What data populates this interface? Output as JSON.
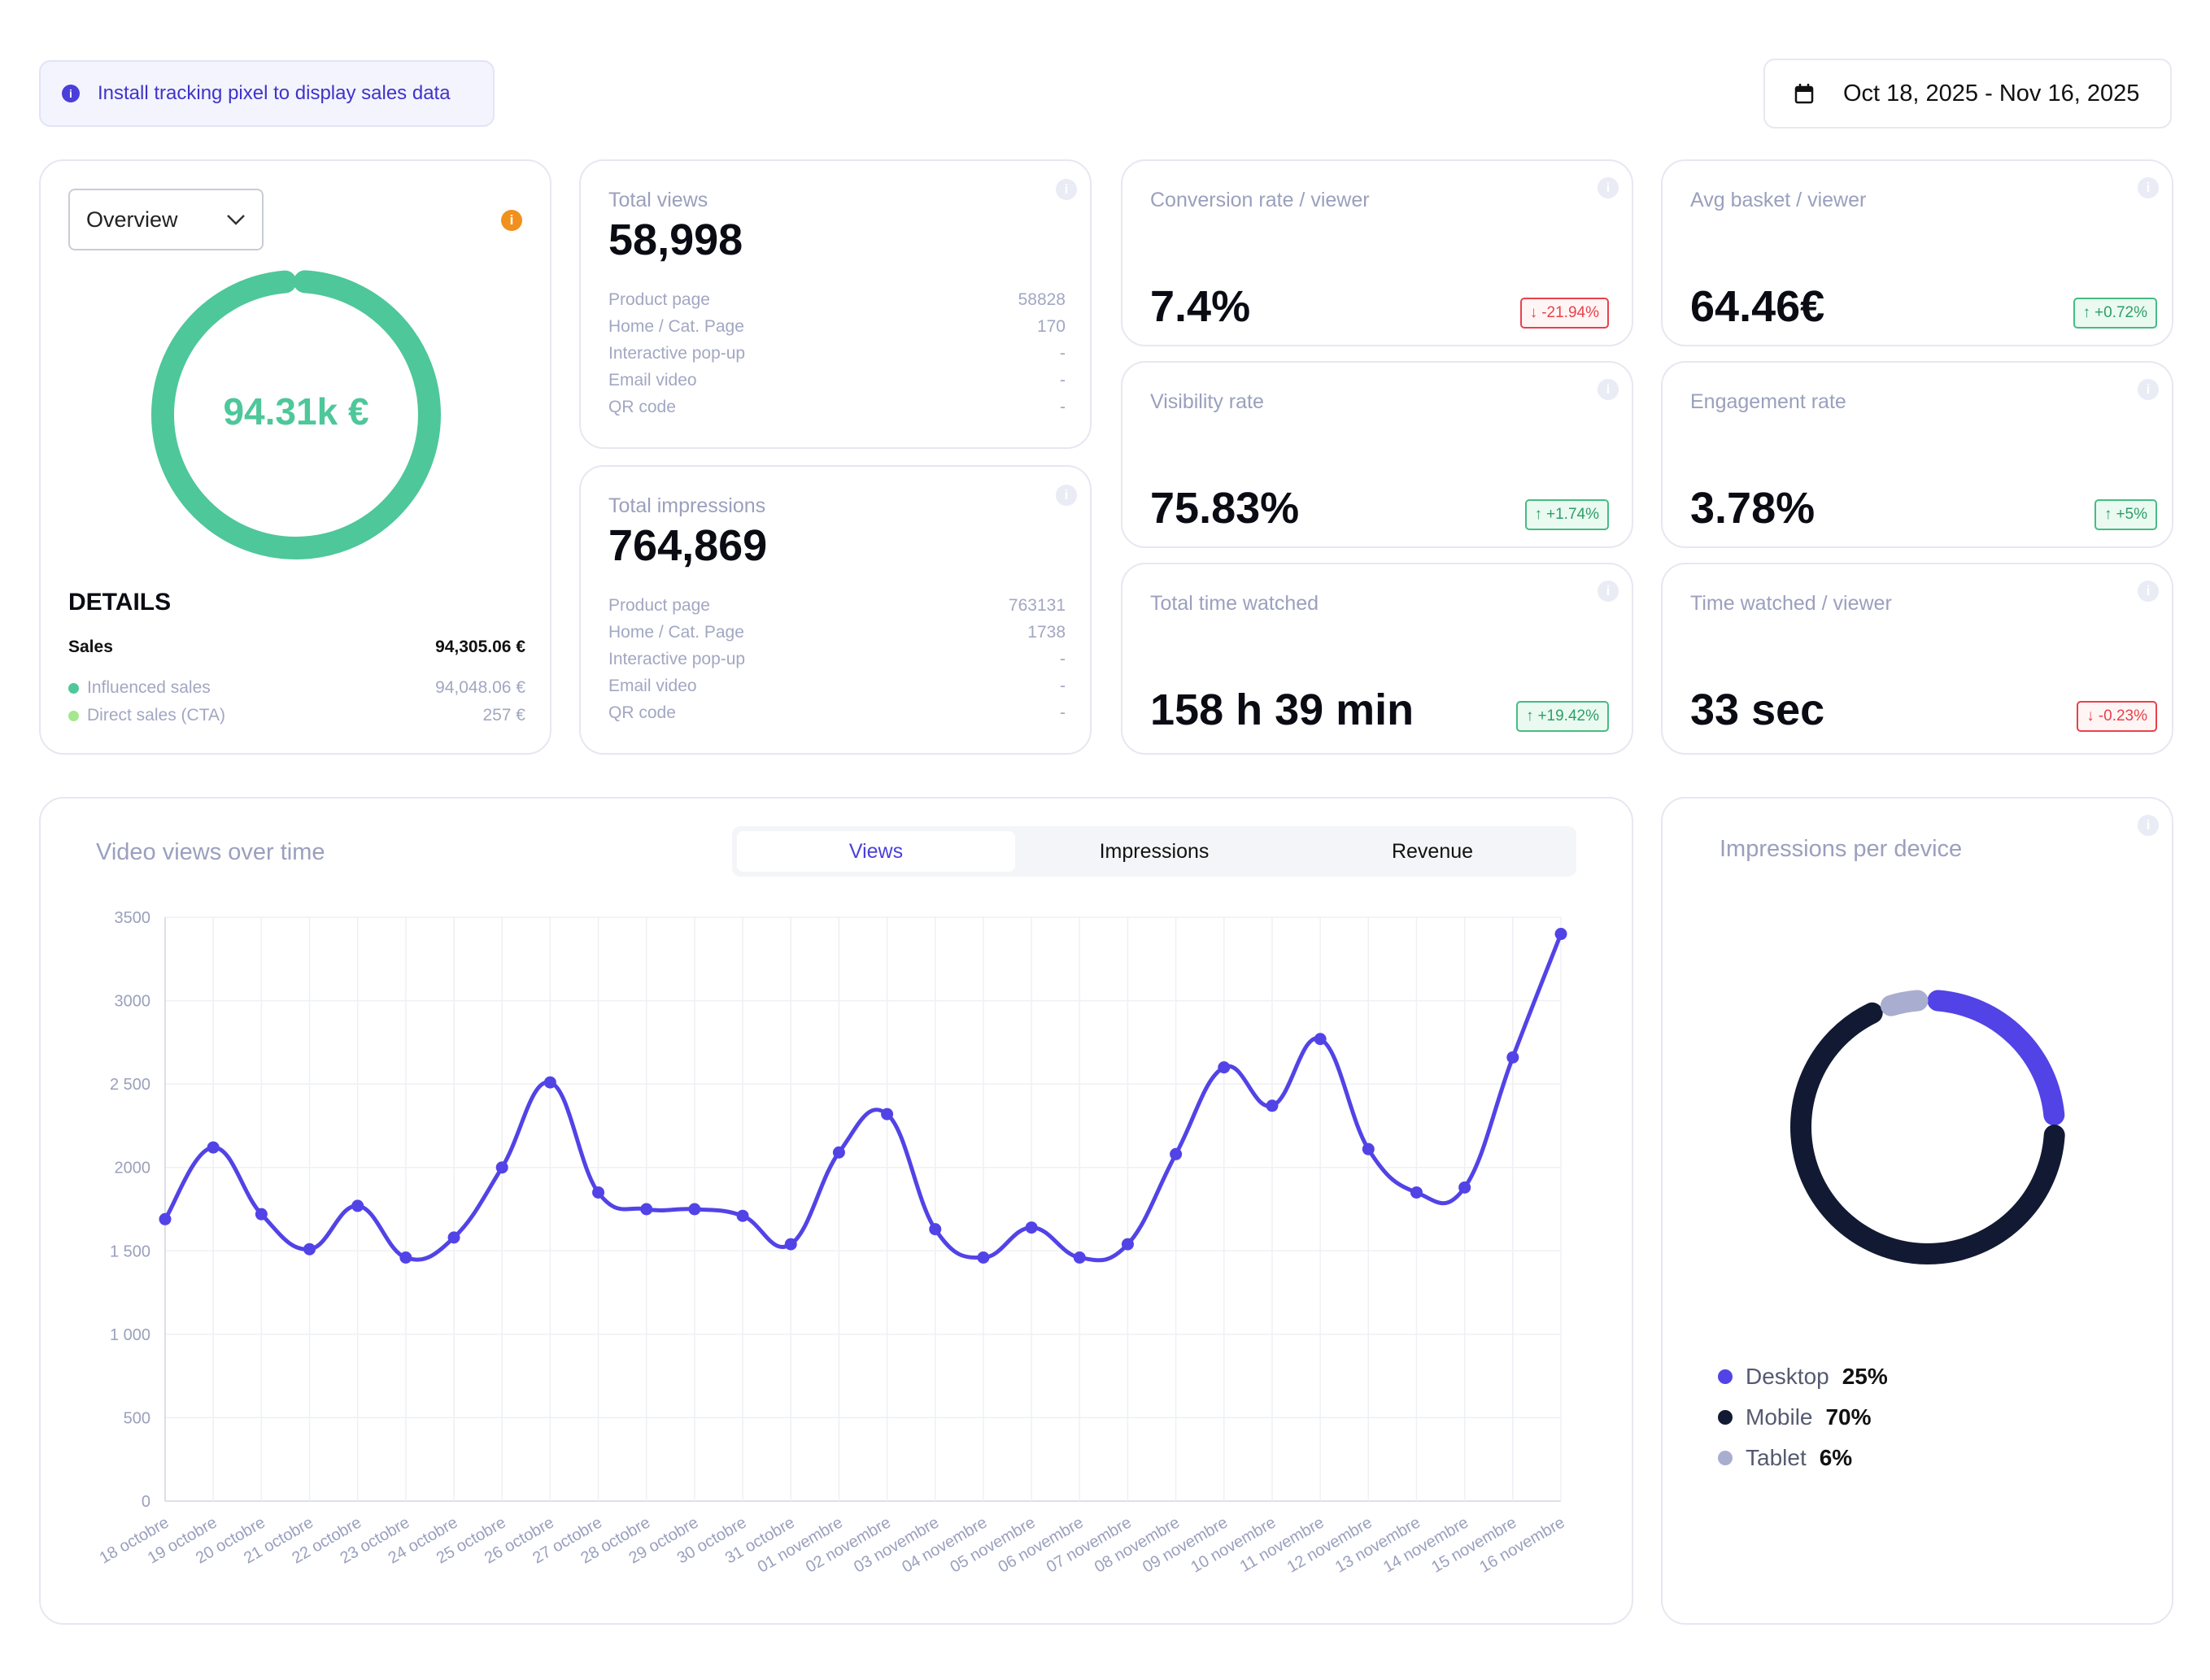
{
  "banner": {
    "text": "Install tracking pixel to display sales data"
  },
  "date_range": {
    "text": "Oct 18, 2025 - Nov 16, 2025"
  },
  "overview": {
    "dropdown": "Overview",
    "total": "94.31k €",
    "details_title": "DETAILS",
    "sales_label": "Sales",
    "sales_value": "94,305.06 €",
    "influenced_label": "Influenced sales",
    "influenced_value": "94,048.06 €",
    "direct_label": "Direct sales (CTA)",
    "direct_value": "257 €",
    "ring_share": 0.997,
    "colors": {
      "influenced": "#4ec79a",
      "direct": "#a3e88f"
    }
  },
  "views": {
    "title": "Total views",
    "value": "58,998",
    "rows": [
      {
        "label": "Product page",
        "value": "58828"
      },
      {
        "label": "Home / Cat. Page",
        "value": "170"
      },
      {
        "label": "Interactive pop-up",
        "value": "-"
      },
      {
        "label": "Email video",
        "value": "-"
      },
      {
        "label": "QR code",
        "value": "-"
      }
    ]
  },
  "impressions": {
    "title": "Total impressions",
    "value": "764,869",
    "rows": [
      {
        "label": "Product page",
        "value": "763131"
      },
      {
        "label": "Home / Cat. Page",
        "value": "1738"
      },
      {
        "label": "Interactive pop-up",
        "value": "-"
      },
      {
        "label": "Email video",
        "value": "-"
      },
      {
        "label": "QR code",
        "value": "-"
      }
    ]
  },
  "kpis": {
    "conversion": {
      "title": "Conversion rate / viewer",
      "value": "7.4%",
      "change": "-21.94%",
      "dir": "down"
    },
    "basket": {
      "title": "Avg basket / viewer",
      "value": "64.46€",
      "change": "+0.72%",
      "dir": "up"
    },
    "visibility": {
      "title": "Visibility rate",
      "value": "75.83%",
      "change": "+1.74%",
      "dir": "up"
    },
    "engagement": {
      "title": "Engagement rate",
      "value": "3.78%",
      "change": "+5%",
      "dir": "up"
    },
    "time_total": {
      "title": "Total time watched",
      "value": "158 h 39 min",
      "change": "+19.42%",
      "dir": "up"
    },
    "time_viewer": {
      "title": "Time watched / viewer",
      "value": "33 sec",
      "change": "-0.23%",
      "dir": "down"
    }
  },
  "timechart": {
    "title": "Video views over time",
    "tabs": [
      "Views",
      "Impressions",
      "Revenue"
    ],
    "active_tab": "Views"
  },
  "device": {
    "title": "Impressions per device",
    "legend": [
      {
        "label": "Desktop",
        "pct": "25%",
        "color": "#5243e6"
      },
      {
        "label": "Mobile",
        "pct": "70%",
        "color": "#121a33"
      },
      {
        "label": "Tablet",
        "pct": "6%",
        "color": "#a9aed0"
      }
    ]
  },
  "chart_data": {
    "type": "line",
    "title": "Video views over time",
    "xlabel": "",
    "ylabel": "",
    "ylim": [
      0,
      3500
    ],
    "yticks": [
      0,
      500,
      1000,
      1500,
      2000,
      2500,
      3000,
      3500
    ],
    "ytick_labels": [
      "0",
      "500",
      "1 000",
      "1 500",
      "2000",
      "2 500",
      "3000",
      "3500"
    ],
    "grid": true,
    "categories": [
      "18 octobre",
      "19 octobre",
      "20 octobre",
      "21 octobre",
      "22 octobre",
      "23 octobre",
      "24 octobre",
      "25 octobre",
      "26 octobre",
      "27 octobre",
      "28 octobre",
      "29 octobre",
      "30 octobre",
      "31 octobre",
      "01 novembre",
      "02 novembre",
      "03 novembre",
      "04 novembre",
      "05 novembre",
      "06 novembre",
      "07 novembre",
      "08 novembre",
      "09 novembre",
      "10 novembre",
      "11 novembre",
      "12 novembre",
      "13 novembre",
      "14 novembre",
      "15 novembre",
      "16 novembre"
    ],
    "series": [
      {
        "values": [
          1690,
          2120,
          1720,
          1510,
          1770,
          1460,
          1580,
          2000,
          2510,
          1850,
          1750,
          1750,
          1710,
          1540,
          2090,
          2320,
          1630,
          1460,
          1640,
          1460,
          1540,
          2080,
          2600,
          2370,
          2770,
          2110,
          1850,
          1880,
          2660,
          3400
        ],
        "color": "#5243e6"
      }
    ]
  }
}
